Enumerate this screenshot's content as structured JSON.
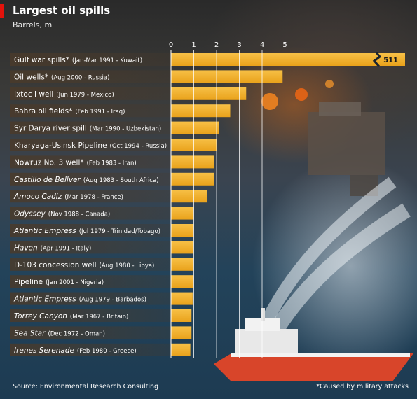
{
  "title": "Largest oil spills",
  "subtitle": "Barrels, m",
  "source": "Source: Environmental Research Consulting",
  "note": "*Caused by military attacks",
  "colors": {
    "bar": "#e9a21b",
    "bar_highlight": "#f7c046",
    "label_band": "#4a3a2a",
    "accent": "#e3120b",
    "gridline": "#ffffff"
  },
  "chart_data": {
    "type": "bar",
    "orientation": "horizontal",
    "title": "Largest oil spills",
    "subtitle": "Barrels, m",
    "xlim": [
      0,
      5
    ],
    "xticks": [
      0,
      1,
      2,
      3,
      4,
      5
    ],
    "grid": true,
    "axis_position": "top",
    "categories": [
      {
        "name": "Gulf war spills*",
        "detail": "(Jan-Mar 1991 - Kuwait)",
        "italic": false
      },
      {
        "name": "Oil wells*",
        "detail": "(Aug 2000 - Russia)",
        "italic": false
      },
      {
        "name": "Ixtoc I well",
        "detail": "(Jun 1979 - Mexico)",
        "italic": false
      },
      {
        "name": "Bahra oil fields*",
        "detail": "(Feb 1991 - Iraq)",
        "italic": false
      },
      {
        "name": "Syr Darya river spill",
        "detail": "(Mar 1990 - Uzbekistan)",
        "italic": false
      },
      {
        "name": "Kharyaga-Usinsk Pipeline",
        "detail": "(Oct 1994 - Russia)",
        "italic": false
      },
      {
        "name": "Nowruz No. 3 well*",
        "detail": "(Feb 1983 - Iran)",
        "italic": false
      },
      {
        "name": "Castillo de Bellver",
        "detail": "(Aug 1983 - South Africa)",
        "italic": true
      },
      {
        "name": "Amoco Cadiz",
        "detail": "(Mar 1978 - France)",
        "italic": true
      },
      {
        "name": "Odyssey",
        "detail": "(Nov 1988 - Canada)",
        "italic": true
      },
      {
        "name": "Atlantic Empress",
        "detail": "(Jul 1979 - Trinidad/Tobago)",
        "italic": true
      },
      {
        "name": "Haven",
        "detail": "(Apr 1991 - Italy)",
        "italic": true
      },
      {
        "name": "D-103 concession well",
        "detail": "(Aug 1980 - Libya)",
        "italic": false
      },
      {
        "name": "Pipeline",
        "detail": "(Jan 2001 - Nigeria)",
        "italic": false
      },
      {
        "name": "Atlantic Empress",
        "detail": "(Aug 1979 - Barbados)",
        "italic": true
      },
      {
        "name": "Torrey Canyon",
        "detail": "(Mar 1967 - Britain)",
        "italic": true
      },
      {
        "name": "Sea Star",
        "detail": "(Dec 1972 - Oman)",
        "italic": true
      },
      {
        "name": "Irenes Serenade",
        "detail": "(Feb 1980 - Greece)",
        "italic": true
      }
    ],
    "values": [
      511,
      4.9,
      3.3,
      2.6,
      2.1,
      2.0,
      1.9,
      1.9,
      1.6,
      1.0,
      1.0,
      1.0,
      1.0,
      1.0,
      0.95,
      0.9,
      0.9,
      0.85
    ],
    "data_labels": [
      "511",
      "",
      "",
      "",
      "",
      "",
      "",
      "",
      "",
      "",
      "",
      "",
      "",
      "",
      "",
      "",
      "",
      ""
    ],
    "axis_break": {
      "series_index": 0,
      "label": "511"
    }
  }
}
